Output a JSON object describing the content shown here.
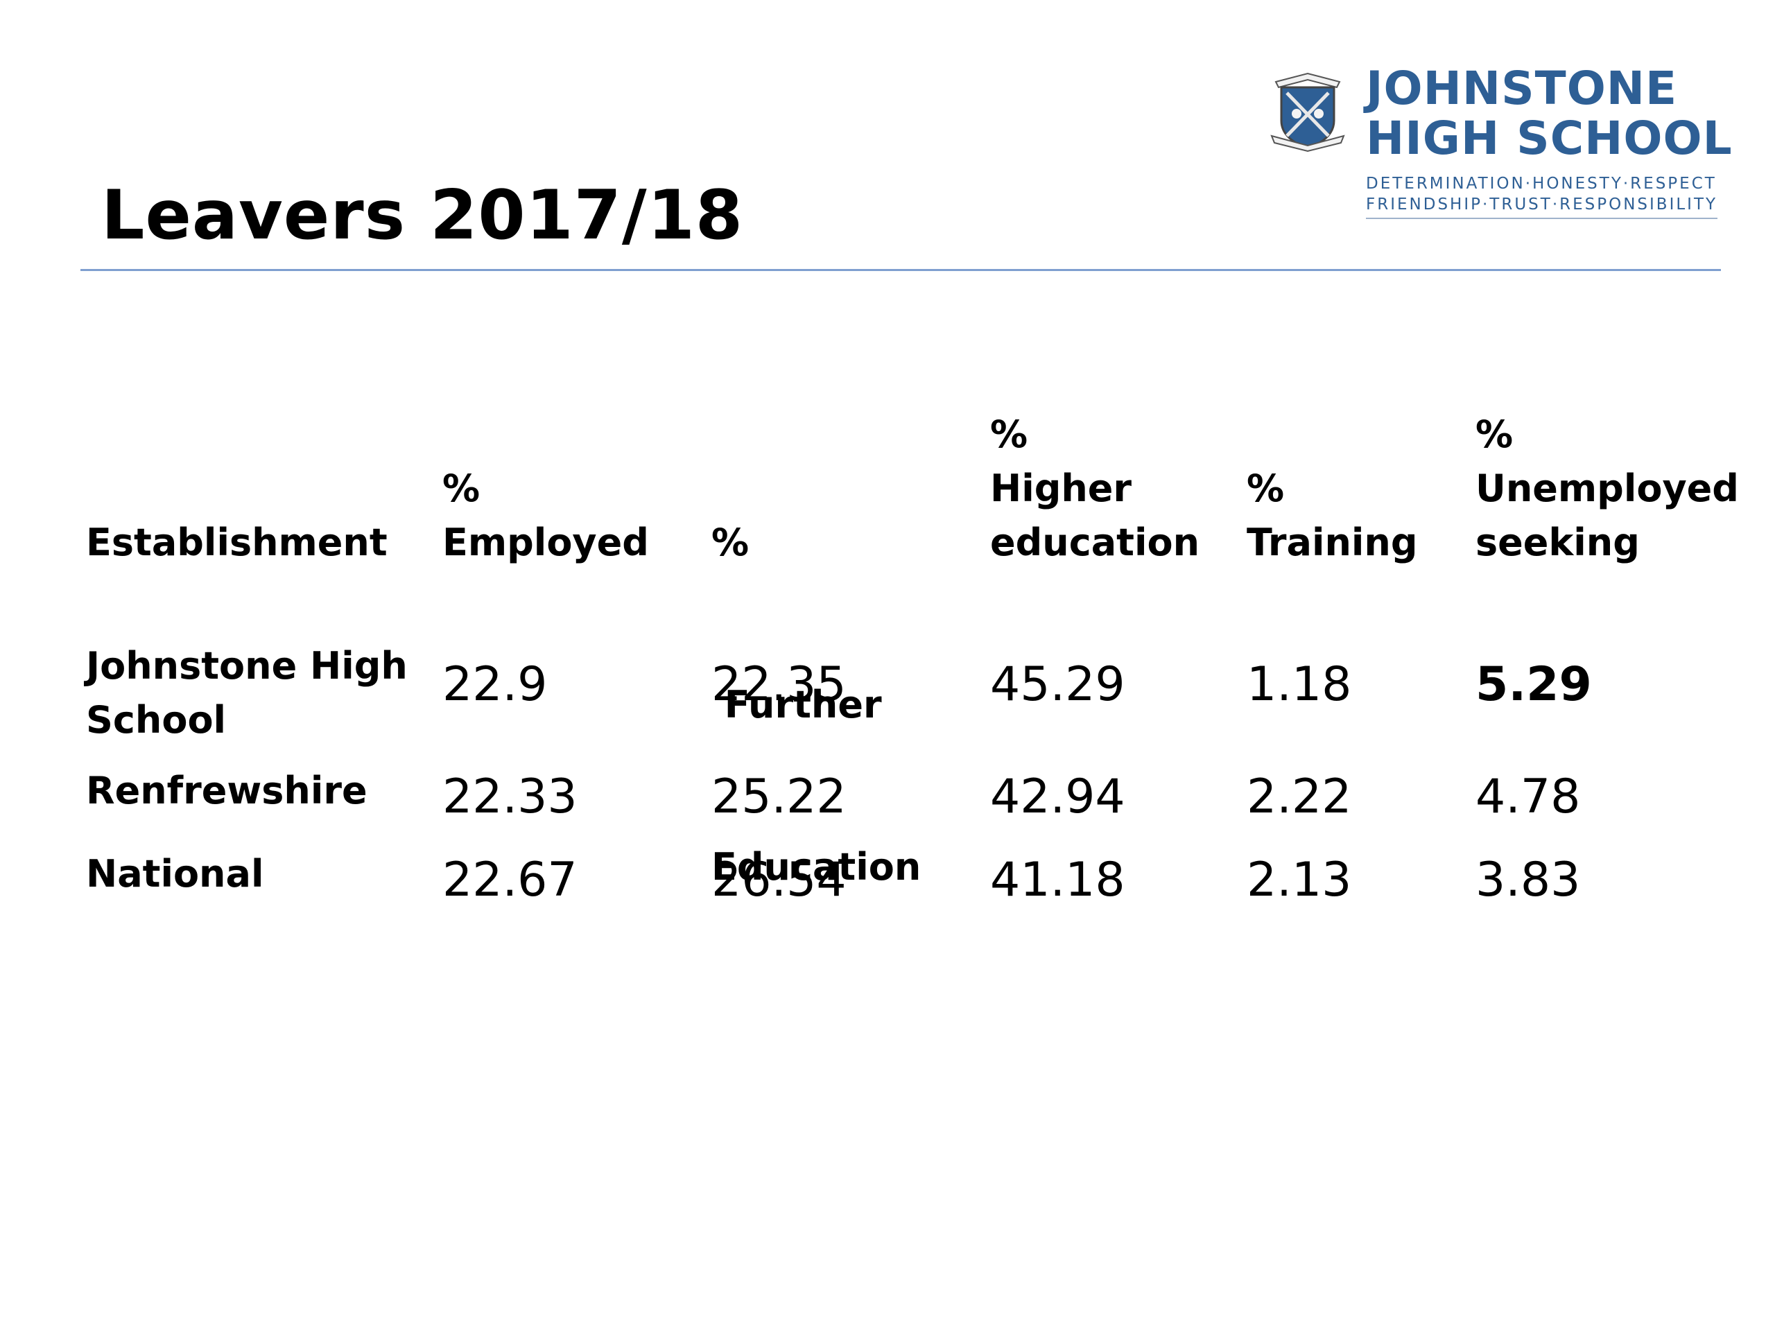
{
  "slide": {
    "title": "Leavers 2017/18"
  },
  "logo": {
    "school_name_line1": "JOHNSTONE",
    "school_name_line2": "HIGH SCHOOL",
    "motto_line1": "DETERMINATION·HONESTY·RESPECT",
    "motto_line2": "FRIENDSHIP·TRUST·RESPONSIBILITY",
    "crest_banner_top": "HIGH SCHOOL",
    "crest_banner_bottom": "JOHNSTONE",
    "brand_color": "#2e5f95"
  },
  "table": {
    "headers": [
      {
        "lines": [
          "Establishment"
        ]
      },
      {
        "lines": [
          "%",
          "Employed"
        ]
      },
      {
        "lines": [
          "%",
          " Further",
          "Education"
        ]
      },
      {
        "lines": [
          "%",
          "Higher",
          "education"
        ]
      },
      {
        "lines": [
          "%",
          "Training"
        ]
      },
      {
        "lines": [
          "%",
          "Unemployed",
          "seeking"
        ]
      }
    ],
    "rows": [
      {
        "label_lines": [
          "Johnstone High",
          "School"
        ],
        "values": [
          "22.9",
          "22.35",
          "45.29",
          "1.18",
          "5.29"
        ],
        "bold_last": true
      },
      {
        "label_lines": [
          "Renfrewshire"
        ],
        "values": [
          "22.33",
          "25.22",
          "42.94",
          "2.22",
          "4.78"
        ],
        "bold_last": false
      },
      {
        "label_lines": [
          "National"
        ],
        "values": [
          "22.67",
          "26.54",
          "41.18",
          "2.13",
          "3.83"
        ],
        "bold_last": false
      }
    ]
  }
}
